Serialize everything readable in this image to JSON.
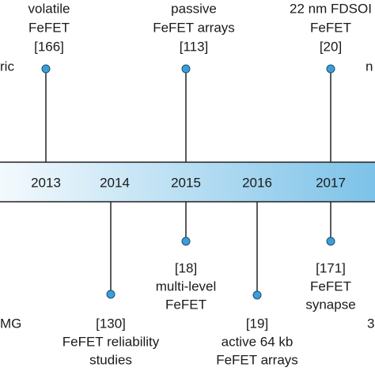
{
  "years": [
    "2013",
    "2014",
    "2015",
    "2016",
    "2017"
  ],
  "events_above": [
    {
      "lines": [
        "volatile",
        "FeFET",
        "[166]"
      ]
    },
    {
      "lines": [
        "passive",
        "FeFET arrays",
        "[113]"
      ]
    },
    {
      "lines": [
        "22 nm FDSOI",
        "FeFET",
        "[20]"
      ]
    }
  ],
  "events_below": [
    {
      "lines": [
        "[130]",
        "FeFET reliability",
        "studies"
      ]
    },
    {
      "lines": [
        "[18]",
        "multi-level",
        "FeFET"
      ]
    },
    {
      "lines": [
        "[19]",
        "active 64 kb",
        "FeFET arrays"
      ]
    },
    {
      "lines": [
        "[171]",
        "FeFET",
        "synapse"
      ]
    }
  ],
  "fragments": [
    "ric",
    "MG",
    "n",
    "3"
  ]
}
